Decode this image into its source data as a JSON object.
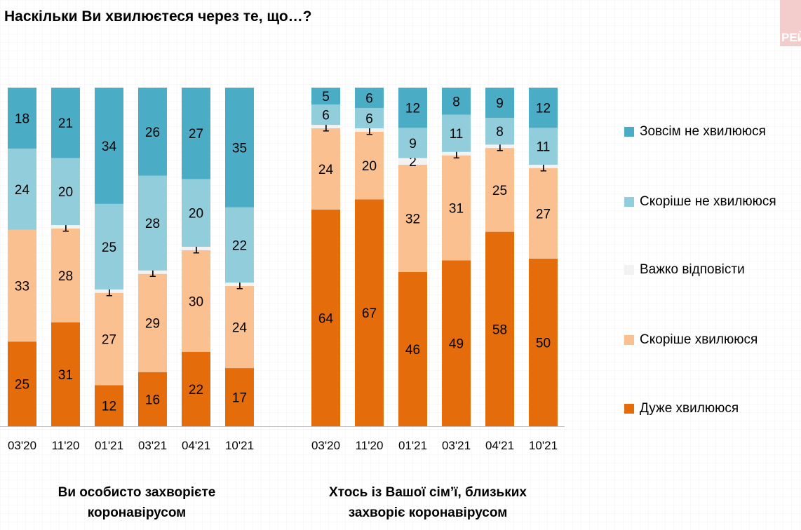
{
  "title": "Наскільки Ви хвилюєтеся через те, що…?",
  "logo_text": "РЕЙТИНГ",
  "chart_data": {
    "type": "bar",
    "stacked": true,
    "series_names": [
      "Дуже хвилююся",
      "Скоріше хвилююся",
      "Важко відповісти",
      "Скоріше не хвилююся",
      "Зовсім не хвилююся"
    ],
    "colors": [
      "#E46C0A",
      "#FAC090",
      "#F2F2F2",
      "#92CDDC",
      "#4BACC6"
    ],
    "legend_order": [
      "Зовсім не хвилююся",
      "Скоріше не хвилююся",
      "Важко відповісти",
      "Скоріше хвилююся",
      "Дуже хвилююся"
    ],
    "legend_placement": "right",
    "groups": [
      {
        "label": "Ви особисто захворієте коронавірусом",
        "categories": [
          "03'20",
          "11'20",
          "01'21",
          "03'21",
          "04'21",
          "10'21"
        ],
        "values": [
          [
            25,
            33,
            0,
            24,
            18
          ],
          [
            31,
            28,
            1,
            20,
            21
          ],
          [
            12,
            27,
            1,
            25,
            34
          ],
          [
            16,
            29,
            1,
            28,
            26
          ],
          [
            22,
            30,
            1,
            20,
            27
          ],
          [
            17,
            24,
            1,
            22,
            35
          ]
        ]
      },
      {
        "label": "Хтось із Вашої сім’ї, близьких захворіє коронавірусом",
        "categories": [
          "03'20",
          "11'20",
          "01'21",
          "03'21",
          "04'21",
          "10'21"
        ],
        "values": [
          [
            64,
            24,
            1,
            6,
            5
          ],
          [
            67,
            20,
            1,
            6,
            6
          ],
          [
            46,
            32,
            2,
            9,
            12
          ],
          [
            49,
            31,
            1,
            11,
            8
          ],
          [
            58,
            25,
            1,
            8,
            9
          ],
          [
            50,
            27,
            1,
            11,
            12
          ]
        ]
      }
    ]
  }
}
